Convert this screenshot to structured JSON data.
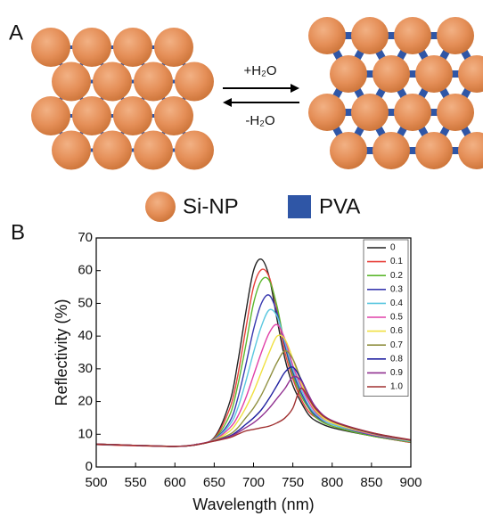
{
  "panel_a": {
    "label": "A",
    "forward": "+H₂O",
    "backward": "-H₂O",
    "legend": [
      "Si-NP",
      "PVA"
    ]
  },
  "chart_data": {
    "type": "line",
    "panel_label": "B",
    "x_label": "Wavelength (nm)",
    "y_label": "Reflectivity (%)",
    "xlim": [
      500,
      900
    ],
    "ylim": [
      0,
      70
    ],
    "xticks": [
      500,
      550,
      600,
      650,
      700,
      750,
      800,
      850,
      900
    ],
    "yticks": [
      0,
      10,
      20,
      30,
      40,
      50,
      60,
      70
    ],
    "legend_position": "upper right",
    "x": [
      500,
      550,
      600,
      625,
      650,
      670,
      680,
      690,
      700,
      710,
      720,
      730,
      740,
      750,
      760,
      770,
      780,
      800,
      850,
      900
    ],
    "series": [
      {
        "name": "0",
        "color": "#222222",
        "values": [
          7,
          6.6,
          6.3,
          6.8,
          9,
          20,
          32,
          47,
          60,
          63.5,
          58,
          45,
          33,
          25,
          20,
          16,
          14,
          12,
          9.5,
          7.5
        ]
      },
      {
        "name": "0.1",
        "color": "#e8413a",
        "values": [
          6.8,
          6.5,
          6.3,
          6.8,
          8.8,
          18,
          28,
          42,
          55,
          60.3,
          58,
          48,
          35,
          27,
          21,
          17,
          15,
          12.5,
          9.5,
          7.5
        ]
      },
      {
        "name": "0.2",
        "color": "#5cb82e",
        "values": [
          6.9,
          6.6,
          6.3,
          6.8,
          8.6,
          16,
          25,
          37,
          50,
          57,
          57,
          49,
          37,
          28,
          22,
          18,
          15,
          12.5,
          9.5,
          7.6
        ]
      },
      {
        "name": "0.3",
        "color": "#3a3ab0",
        "values": [
          6.9,
          6.6,
          6.3,
          6.8,
          8.5,
          14,
          21,
          31,
          42,
          50,
          52.5,
          47,
          37,
          29,
          23,
          18.5,
          15.5,
          13,
          9.8,
          7.8
        ]
      },
      {
        "name": "0.4",
        "color": "#5cc8e0",
        "values": [
          6.9,
          6.6,
          6.3,
          6.8,
          8.4,
          13,
          18,
          26,
          35,
          43,
          48,
          46,
          38,
          30,
          24,
          19,
          16,
          13,
          10,
          7.8
        ]
      },
      {
        "name": "0.5",
        "color": "#e040a8",
        "values": [
          7,
          6.6,
          6.3,
          6.8,
          8.3,
          12,
          15.5,
          21,
          28,
          35,
          41,
          43.5,
          39,
          31,
          25,
          20,
          16.5,
          13.5,
          10,
          8
        ]
      },
      {
        "name": "0.6",
        "color": "#f0e040",
        "values": [
          7,
          6.6,
          6.3,
          6.7,
          8.2,
          11,
          14,
          18,
          23,
          29,
          35,
          40,
          39,
          33,
          26,
          21,
          17,
          13.5,
          10.2,
          8
        ]
      },
      {
        "name": "0.7",
        "color": "#909040",
        "values": [
          7,
          6.6,
          6.3,
          6.7,
          8.1,
          10,
          12,
          15,
          18,
          22,
          27,
          32,
          35.5,
          33,
          27,
          21.5,
          17.5,
          14,
          10.3,
          8.1
        ]
      },
      {
        "name": "0.8",
        "color": "#2020a0",
        "values": [
          7,
          6.6,
          6.3,
          6.7,
          8,
          9.5,
          11,
          13,
          15,
          17.5,
          21,
          25,
          29,
          30.5,
          27,
          22,
          18,
          14,
          10.4,
          8.2
        ]
      },
      {
        "name": "0.9",
        "color": "#903090",
        "values": [
          7,
          6.6,
          6.3,
          6.7,
          8,
          9.3,
          10.5,
          12,
          13.5,
          15.5,
          18,
          21,
          24,
          27.5,
          26.5,
          22,
          18,
          14.2,
          10.5,
          8.2
        ]
      },
      {
        "name": "1.0",
        "color": "#a03030",
        "values": [
          7,
          6.6,
          6.3,
          6.7,
          7.9,
          9,
          10,
          11,
          11.5,
          12,
          12.5,
          13.5,
          15,
          18,
          24,
          21,
          17.5,
          14,
          10.5,
          8.3
        ]
      }
    ]
  }
}
